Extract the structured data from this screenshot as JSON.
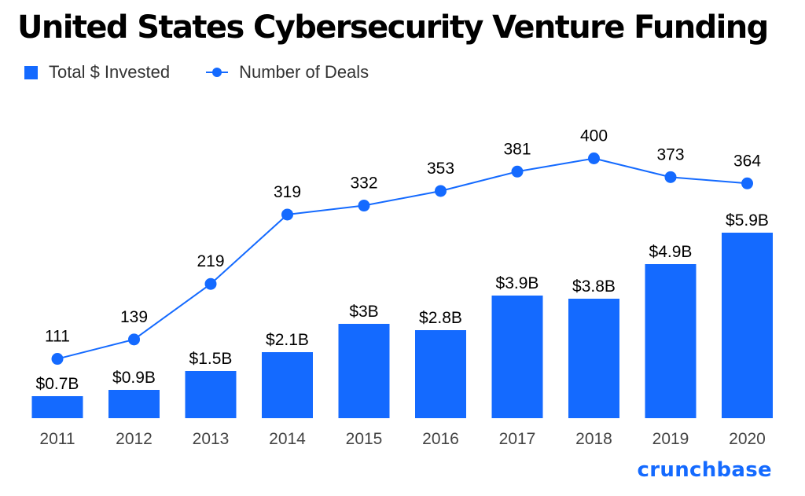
{
  "title": "United States Cybersecurity Venture Funding",
  "brand": {
    "name": "crunchbase",
    "color": "#146AFF"
  },
  "colors": {
    "bar": "#146AFF",
    "line": "#146AFF",
    "text": "#000000",
    "tick": "#444444"
  },
  "chart_data": {
    "type": "bar+line",
    "title": "United States Cybersecurity Venture Funding",
    "categories": [
      "2011",
      "2012",
      "2013",
      "2014",
      "2015",
      "2016",
      "2017",
      "2018",
      "2019",
      "2020"
    ],
    "series": [
      {
        "name": "Total $ Invested",
        "type": "bar",
        "values": [
          0.7,
          0.9,
          1.5,
          2.1,
          3.0,
          2.8,
          3.9,
          3.8,
          4.9,
          5.9
        ],
        "labels": [
          "$0.7B",
          "$0.9B",
          "$1.5B",
          "$2.1B",
          "$3B",
          "$2.8B",
          "$3.9B",
          "$3.8B",
          "$4.9B",
          "$5.9B"
        ]
      },
      {
        "name": "Number of Deals",
        "type": "line",
        "values": [
          111,
          139,
          219,
          319,
          332,
          353,
          381,
          400,
          373,
          364
        ],
        "labels": [
          "111",
          "139",
          "219",
          "319",
          "332",
          "353",
          "381",
          "400",
          "373",
          "364"
        ]
      }
    ],
    "legend": "top-left",
    "grid": false,
    "xlabel": "",
    "ylabel": ""
  }
}
